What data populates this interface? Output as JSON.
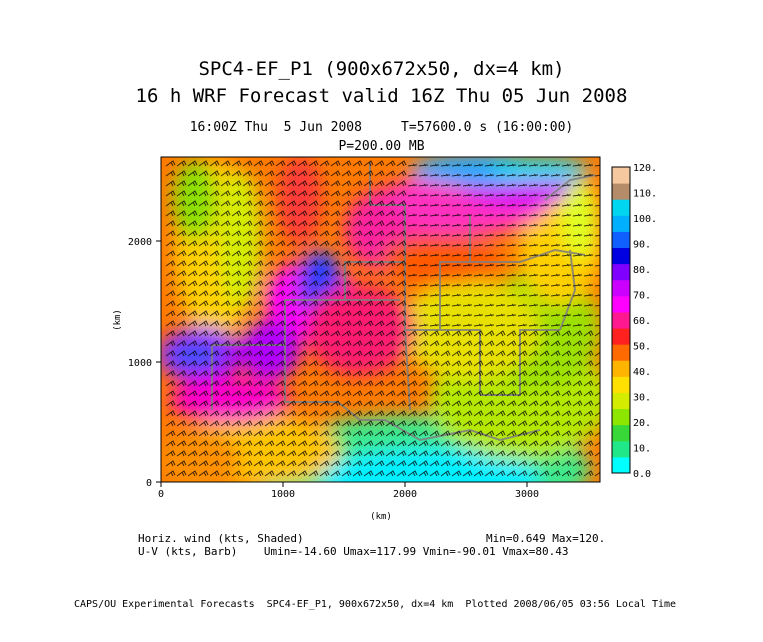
{
  "title_line1": "SPC4-EF_P1 (900x672x50, dx=4 km)",
  "title_line2": "16 h WRF Forecast valid 16Z Thu 05 Jun 2008",
  "subtitle_time": "16:00Z Thu  5 Jun 2008     T=57600.0 s (16:00:00)",
  "subtitle_level": "P=200.00 MB",
  "x_axis": {
    "label": "(km)",
    "ticks": [
      "0",
      "1000",
      "2000",
      "3000"
    ]
  },
  "y_axis": {
    "label": "(km)",
    "ticks": [
      "0",
      "1000",
      "2000"
    ]
  },
  "colorbar": {
    "labels": [
      "0.0",
      "10.",
      "20.",
      "30.",
      "40.",
      "50.",
      "60.",
      "70.",
      "80.",
      "90.",
      "100.",
      "110.",
      "120."
    ],
    "colors": [
      "#00ffff",
      "#20e888",
      "#38d838",
      "#8ce600",
      "#d4ec00",
      "#ffe000",
      "#ffb400",
      "#ff6a00",
      "#ff2020",
      "#ff1890",
      "#ff00ff",
      "#cc00ff",
      "#8000ff",
      "#0000e0",
      "#1060ff",
      "#00b0ff",
      "#00d6f0",
      "#b48c6a",
      "#f5c8a0"
    ]
  },
  "legend": {
    "line1_left": "Horiz. wind (kts, Shaded)",
    "line1_right": "Min=0.649 Max=120.",
    "line2": "U-V (kts, Barb)    Umin=-14.60 Umax=117.99 Vmin=-90.01 Vmax=80.43"
  },
  "footer": "CAPS/OU Experimental Forecasts  SPC4-EF_P1, 900x672x50, dx=4 km  Plotted 2008/06/05 03:56 Local Time"
}
